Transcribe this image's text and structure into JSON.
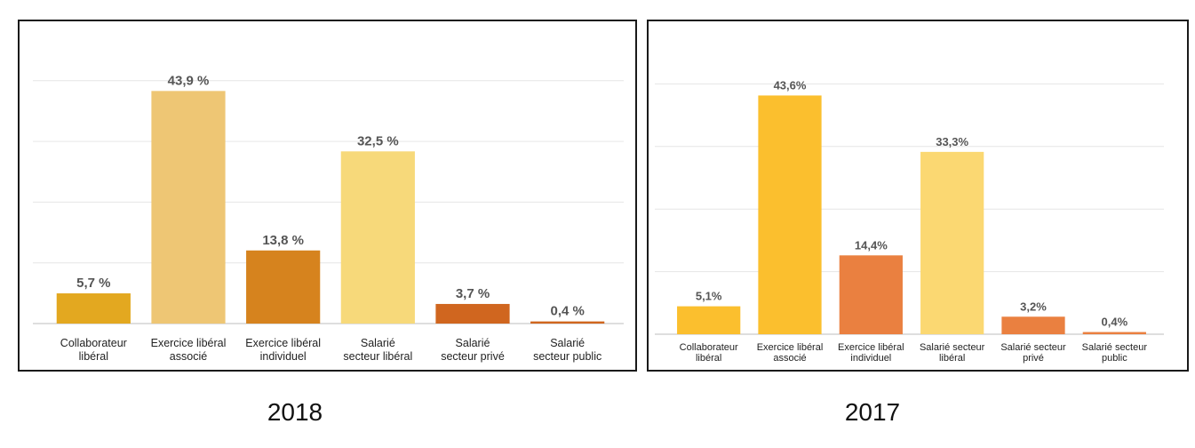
{
  "chart_data": [
    {
      "type": "bar",
      "categories": [
        [
          "Collaborateur",
          "libéral"
        ],
        [
          "Exercice libéral",
          "associé"
        ],
        [
          "Exercice libéral",
          "individuel"
        ],
        [
          "Salarié",
          "secteur libéral"
        ],
        [
          "Salarié",
          "secteur privé"
        ],
        [
          "Salarié",
          "secteur public"
        ]
      ],
      "values": [
        5.7,
        43.9,
        13.8,
        32.5,
        3.7,
        0.4
      ],
      "value_labels": [
        "5,7 %",
        "43,9 %",
        "13,8 %",
        "32,5 %",
        "3,7 %",
        "0,4 %"
      ],
      "colors": [
        "#e3a820",
        "#eec674",
        "#d6831e",
        "#f7d97a",
        "#d0661f",
        "#d0661f"
      ],
      "ylim": [
        0,
        50
      ],
      "grid": true,
      "caption": "2018"
    },
    {
      "type": "bar",
      "categories": [
        [
          "Collaborateur",
          "libéral"
        ],
        [
          "Exercice libéral",
          "associé"
        ],
        [
          "Exercice libéral",
          "individuel"
        ],
        [
          "Salarié secteur",
          "libéral"
        ],
        [
          "Salarié secteur",
          "privé"
        ],
        [
          "Salarié secteur",
          "public"
        ]
      ],
      "values": [
        5.1,
        43.6,
        14.4,
        33.3,
        3.2,
        0.4
      ],
      "value_labels": [
        "5,1%",
        "43,6%",
        "14,4%",
        "33,3%",
        "3,2%",
        "0,4%"
      ],
      "colors": [
        "#fbbf2e",
        "#fbbf2e",
        "#ea8040",
        "#fbd872",
        "#ea8040",
        "#ea8040"
      ],
      "ylim": [
        0,
        50
      ],
      "grid": true,
      "caption": "2017"
    }
  ]
}
